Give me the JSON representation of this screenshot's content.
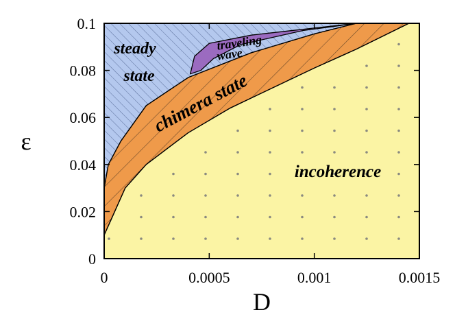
{
  "chart_data": {
    "type": "area",
    "title": "",
    "xlabel": "D",
    "ylabel": "ε",
    "xlim": [
      0,
      0.0015
    ],
    "ylim": [
      0,
      0.1
    ],
    "x_ticks": [
      0,
      0.0005,
      0.001,
      0.0015
    ],
    "x_tick_labels": [
      "0",
      "0.0005",
      "0.001",
      "0.0015"
    ],
    "y_ticks": [
      0,
      0.02,
      0.04,
      0.06,
      0.08,
      0.1
    ],
    "y_tick_labels": [
      "0",
      "0.02",
      "0.04",
      "0.06",
      "0.08",
      "0.1"
    ],
    "grid": false,
    "legend": "none",
    "regions": [
      {
        "name": "steady state",
        "label_lines": [
          "steady",
          "state"
        ],
        "fill": "#b4c8ee",
        "hatch": "forward-diagonal",
        "boundary": [
          [
            0,
            0.1
          ],
          [
            0.0015,
            0.1
          ],
          [
            0.0015,
            0.1
          ],
          [
            0.0002,
            0.065
          ],
          [
            8e-05,
            0.05
          ],
          [
            2e-05,
            0.04
          ],
          [
            0,
            0.03
          ]
        ]
      },
      {
        "name": "traveling wave",
        "label_lines": [
          "traveling",
          "wave"
        ],
        "fill": "#9b6bc0",
        "hatch": "none",
        "boundary": [
          [
            0.00041,
            0.0785
          ],
          [
            0.00043,
            0.086
          ],
          [
            0.0005,
            0.0915
          ],
          [
            0.0007,
            0.095
          ],
          [
            0.0009,
            0.097
          ],
          [
            0.00105,
            0.0985
          ],
          [
            0.0012,
            0.1
          ],
          [
            0.00108,
            0.0985
          ],
          [
            0.00095,
            0.097
          ],
          [
            0.0008,
            0.094
          ],
          [
            0.00065,
            0.091
          ],
          [
            0.00052,
            0.085
          ],
          [
            0.00046,
            0.08
          ]
        ]
      },
      {
        "name": "chimera state",
        "label_lines": [
          "chimera state"
        ],
        "fill": "#ef9a4a",
        "hatch": "back-diagonal",
        "upper_boundary": [
          [
            0,
            0.01
          ],
          [
            0,
            0.03
          ],
          [
            2e-05,
            0.04
          ],
          [
            8e-05,
            0.05
          ],
          [
            0.0002,
            0.065
          ],
          [
            0.0004,
            0.077
          ],
          [
            0.0007,
            0.0875
          ],
          [
            0.001,
            0.0955
          ],
          [
            0.0012,
            0.1
          ],
          [
            0.00145,
            0.1
          ]
        ],
        "lower_boundary": [
          [
            0,
            0.01
          ],
          [
            4e-05,
            0.018
          ],
          [
            0.0001,
            0.03
          ],
          [
            0.0002,
            0.04
          ],
          [
            0.0004,
            0.0535
          ],
          [
            0.0006,
            0.064
          ],
          [
            0.0008,
            0.0725
          ],
          [
            0.001,
            0.081
          ],
          [
            0.0012,
            0.089
          ],
          [
            0.00145,
            0.1
          ]
        ]
      },
      {
        "name": "incoherence",
        "label_lines": [
          "incoherence"
        ],
        "fill": "#fbf4a4",
        "hatch": "dots",
        "boundary_from": "chimera state lower_boundary"
      }
    ],
    "colors": {
      "outline": "#000000",
      "hatch": "#555555",
      "dots": "#8a8a80"
    }
  }
}
